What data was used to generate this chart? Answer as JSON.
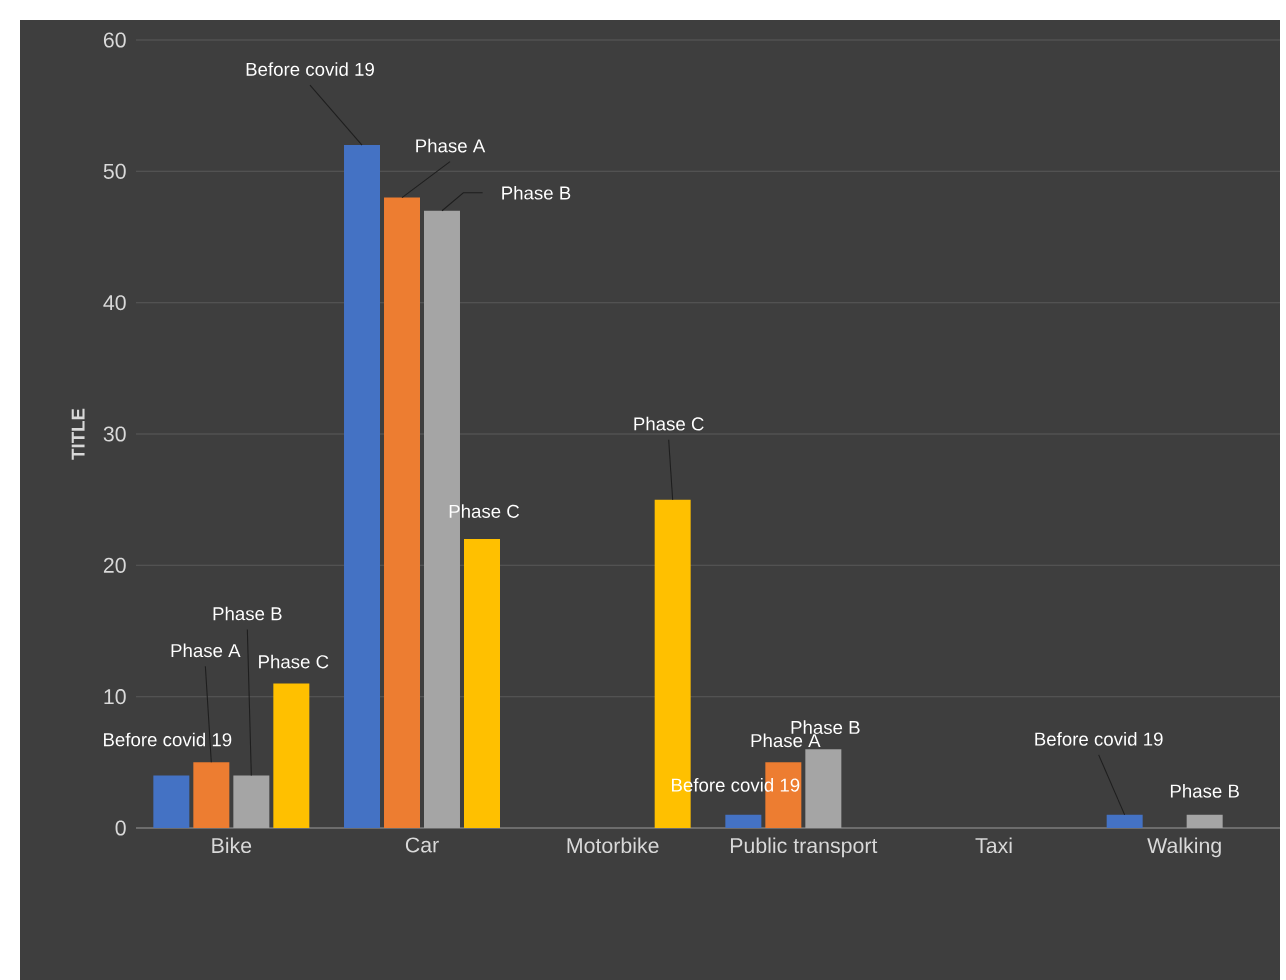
{
  "chart_data": {
    "type": "bar",
    "ylabel": "TITLE",
    "categories": [
      "Bike",
      "Car",
      "Motorbike",
      "Public transport",
      "Taxi",
      "Walking"
    ],
    "series": [
      {
        "color": "#4472c4",
        "values": [
          4,
          52,
          null,
          1,
          null,
          1
        ],
        "value_labels": [
          "Before covid 19",
          "Before covid 19",
          null,
          "Before covid 19",
          null,
          "Before covid 19"
        ]
      },
      {
        "color": "#ed7d31",
        "values": [
          5,
          48,
          null,
          5,
          null,
          null
        ],
        "value_labels": [
          "Phase A",
          "Phase A",
          null,
          "Phase A",
          null,
          null
        ]
      },
      {
        "color": "#a5a5a5",
        "values": [
          4,
          47,
          null,
          6,
          null,
          1
        ],
        "value_labels": [
          "Phase B",
          "Phase B",
          null,
          "Phase B",
          null,
          "Phase B"
        ]
      },
      {
        "color": "#ffc000",
        "values": [
          11,
          22,
          25,
          null,
          null,
          null
        ],
        "value_labels": [
          "Phase C",
          "Phase C",
          "Phase C",
          null,
          null,
          null
        ]
      }
    ],
    "ylim": [
      0,
      60
    ],
    "yticks": [
      0,
      10,
      20,
      30,
      40,
      50,
      60
    ],
    "grid": "y"
  }
}
